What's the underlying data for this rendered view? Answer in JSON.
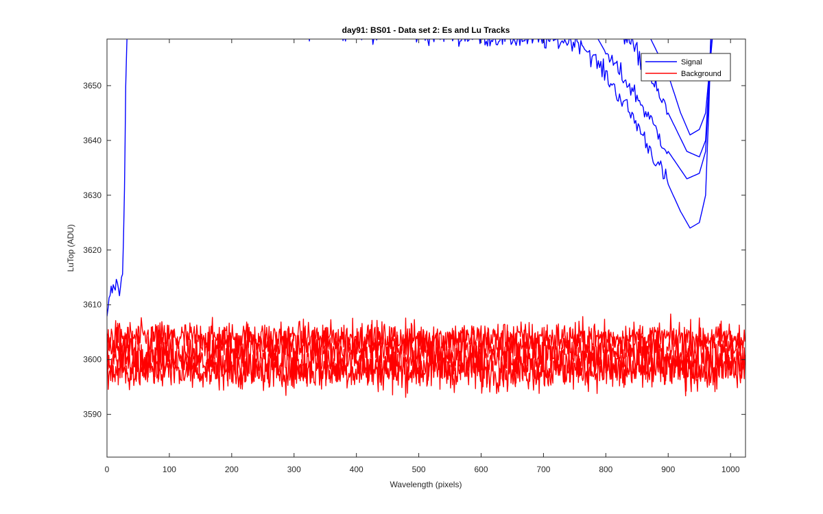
{
  "chart_data": {
    "type": "line",
    "title": "day91: BS01 - Data set 2: Es and Lu Tracks",
    "xlabel": "Wavelength (pixels)",
    "ylabel": "LuTop (ADU)",
    "xlim": [
      0,
      1024
    ],
    "ylim": [
      3582.2,
      3658.5
    ],
    "xticks": [
      0,
      100,
      200,
      300,
      400,
      500,
      600,
      700,
      800,
      900,
      1000
    ],
    "yticks": [
      3590,
      3600,
      3610,
      3620,
      3630,
      3640,
      3650
    ],
    "grid": false,
    "legend": {
      "position": "top-right",
      "entries": [
        "Signal",
        "Background"
      ]
    },
    "colors": {
      "Signal": "#0000ff",
      "Background": "#ff0000"
    },
    "series": [
      {
        "name": "Signal",
        "color": "#0000ff",
        "x": [
          0,
          5,
          10,
          15,
          20,
          25,
          28,
          30,
          33,
          760,
          800,
          850,
          900,
          920,
          935,
          950,
          960,
          965,
          968,
          970,
          975
        ],
        "y": [
          3607,
          3612,
          3613,
          3614,
          3612,
          3617,
          3630,
          3650,
          3662,
          3658,
          3652,
          3643,
          3632,
          3627,
          3624,
          3625,
          3630,
          3645,
          3656,
          3662,
          3665
        ]
      },
      {
        "name": "",
        "color": "#0000ff",
        "x": [
          770,
          800,
          850,
          900,
          930,
          950,
          960,
          965,
          968,
          972
        ],
        "y": [
          3662,
          3656,
          3648,
          3638,
          3633,
          3634,
          3638,
          3648,
          3658,
          3664
        ]
      },
      {
        "name": "",
        "color": "#0000ff",
        "x": [
          800,
          850,
          900,
          930,
          950,
          960,
          965,
          970
        ],
        "y": [
          3664,
          3656,
          3645,
          3638,
          3637,
          3640,
          3650,
          3662
        ]
      },
      {
        "name": "",
        "color": "#0000ff",
        "x": [
          840,
          870,
          900,
          920,
          935,
          950,
          960,
          968,
          975
        ],
        "y": [
          3664,
          3659,
          3652,
          3645,
          3641,
          3642,
          3645,
          3655,
          3664
        ]
      },
      {
        "name": "Background",
        "color": "#ff0000",
        "baseline": 3604,
        "noise": 1.5,
        "x": [
          0,
          1024
        ],
        "y": [
          3604,
          3604
        ]
      },
      {
        "name": "",
        "color": "#ff0000",
        "baseline": 3602,
        "noise": 2.0,
        "x": [
          0,
          1024
        ],
        "y": [
          3602,
          3602
        ]
      },
      {
        "name": "",
        "color": "#ff0000",
        "baseline": 3599.5,
        "noise": 2.0,
        "x": [
          0,
          1024
        ],
        "y": [
          3599.5,
          3599.5
        ]
      },
      {
        "name": "",
        "color": "#ff0000",
        "baseline": 3598,
        "noise": 1.8,
        "x": [
          0,
          1024
        ],
        "y": [
          3598,
          3598
        ]
      }
    ]
  }
}
